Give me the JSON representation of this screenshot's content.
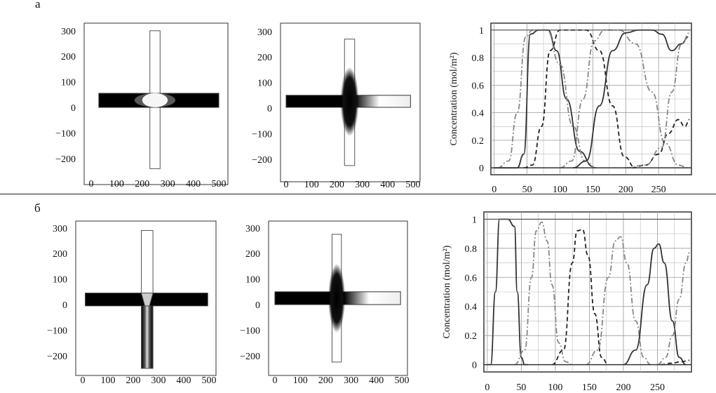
{
  "panels": [
    {
      "label": "a"
    },
    {
      "label": "б"
    }
  ],
  "cross": {
    "yticks": [
      "300",
      "200",
      "100",
      "0",
      "−100",
      "−200"
    ],
    "xticks": [
      "0",
      "100",
      "200",
      "300",
      "400",
      "500"
    ]
  },
  "chart_data": [
    {
      "type": "line",
      "ylabel": "Concentration (mol/m²)",
      "xlabel": "",
      "xticks": [
        "0",
        "50",
        "100",
        "150",
        "200",
        "250"
      ],
      "yticks": [
        "0",
        "0.2",
        "0.4",
        "0.6",
        "0.8",
        "1"
      ],
      "xlim": [
        -5,
        300
      ],
      "ylim": [
        -0.05,
        1.05
      ],
      "grid": true,
      "series": [
        {
          "style": "solid",
          "x": [
            0,
            35,
            45,
            55,
            68,
            82,
            95,
            110,
            130,
            150
          ],
          "y": [
            0,
            0,
            0.1,
            0.97,
            1,
            1,
            0.85,
            0.5,
            0.12,
            0.01
          ]
        },
        {
          "style": "dashdot",
          "x": [
            5,
            22,
            35,
            48,
            58,
            80,
            100,
            120,
            138,
            155
          ],
          "y": [
            0,
            0.05,
            0.4,
            0.95,
            1,
            1,
            0.75,
            0.3,
            0.05,
            0
          ]
        },
        {
          "style": "dashed",
          "x": [
            45,
            58,
            72,
            85,
            100,
            115,
            140,
            160,
            180,
            198,
            215
          ],
          "y": [
            0,
            0.02,
            0.3,
            0.85,
            1,
            1,
            1,
            0.85,
            0.45,
            0.08,
            0
          ]
        },
        {
          "style": "dashdot",
          "x": [
            100,
            118,
            135,
            152,
            168,
            190,
            215,
            240,
            260,
            280,
            295
          ],
          "y": [
            0,
            0.05,
            0.5,
            0.92,
            1,
            1,
            0.9,
            0.55,
            0.18,
            0.02,
            0
          ]
        },
        {
          "style": "solid",
          "x": [
            120,
            140,
            160,
            180,
            200,
            220,
            240,
            255,
            270,
            285,
            295
          ],
          "y": [
            0,
            0.05,
            0.45,
            0.85,
            0.98,
            1,
            1,
            0.97,
            0.85,
            0.9,
            0.95
          ]
        },
        {
          "style": "dashed",
          "x": [
            210,
            230,
            250,
            265,
            280,
            290,
            297
          ],
          "y": [
            0,
            0.02,
            0.1,
            0.25,
            0.35,
            0.3,
            0.35
          ]
        },
        {
          "style": "dashdot",
          "x": [
            200,
            230,
            255,
            270,
            285,
            297
          ],
          "y": [
            0,
            0.02,
            0.15,
            0.55,
            0.9,
            0.98
          ]
        }
      ]
    },
    {
      "type": "line",
      "ylabel": "Concentration (mol/m²)",
      "xlabel": "",
      "xticks": [
        "0",
        "50",
        "100",
        "150",
        "200",
        "250"
      ],
      "yticks": [
        "0",
        "0.2",
        "0.4",
        "0.6",
        "0.8",
        "1"
      ],
      "xlim": [
        -5,
        300
      ],
      "ylim": [
        -0.05,
        1.05
      ],
      "grid": true,
      "series": [
        {
          "style": "solid",
          "x": [
            0,
            5,
            12,
            18,
            30,
            40,
            44,
            50,
            55,
            60
          ],
          "y": [
            0,
            0,
            0.5,
            1,
            1,
            0.95,
            0.5,
            0.05,
            0,
            0
          ]
        },
        {
          "style": "dashdot",
          "x": [
            40,
            55,
            65,
            72,
            80,
            88,
            95,
            105,
            115,
            125
          ],
          "y": [
            0,
            0.1,
            0.6,
            0.92,
            0.98,
            0.85,
            0.55,
            0.15,
            0.02,
            0
          ]
        },
        {
          "style": "dashed",
          "x": [
            95,
            112,
            125,
            132,
            140,
            148,
            158,
            168,
            178
          ],
          "y": [
            0,
            0.1,
            0.7,
            0.92,
            0.93,
            0.75,
            0.35,
            0.05,
            0
          ]
        },
        {
          "style": "dashdot",
          "x": [
            145,
            162,
            178,
            188,
            196,
            205,
            218,
            230,
            240
          ],
          "y": [
            0,
            0.1,
            0.6,
            0.85,
            0.88,
            0.7,
            0.3,
            0.05,
            0
          ]
        },
        {
          "style": "solid",
          "x": [
            200,
            218,
            235,
            245,
            252,
            260,
            272,
            282,
            292
          ],
          "y": [
            0,
            0.1,
            0.55,
            0.8,
            0.83,
            0.7,
            0.3,
            0.05,
            0
          ]
        },
        {
          "style": "dashdot",
          "x": [
            250,
            262,
            272,
            282,
            292,
            297
          ],
          "y": [
            0,
            0.05,
            0.2,
            0.45,
            0.7,
            0.77
          ]
        },
        {
          "style": "dashed",
          "x": [
            255,
            270,
            285,
            297
          ],
          "y": [
            0,
            0.01,
            0.02,
            0.03
          ]
        }
      ]
    }
  ]
}
